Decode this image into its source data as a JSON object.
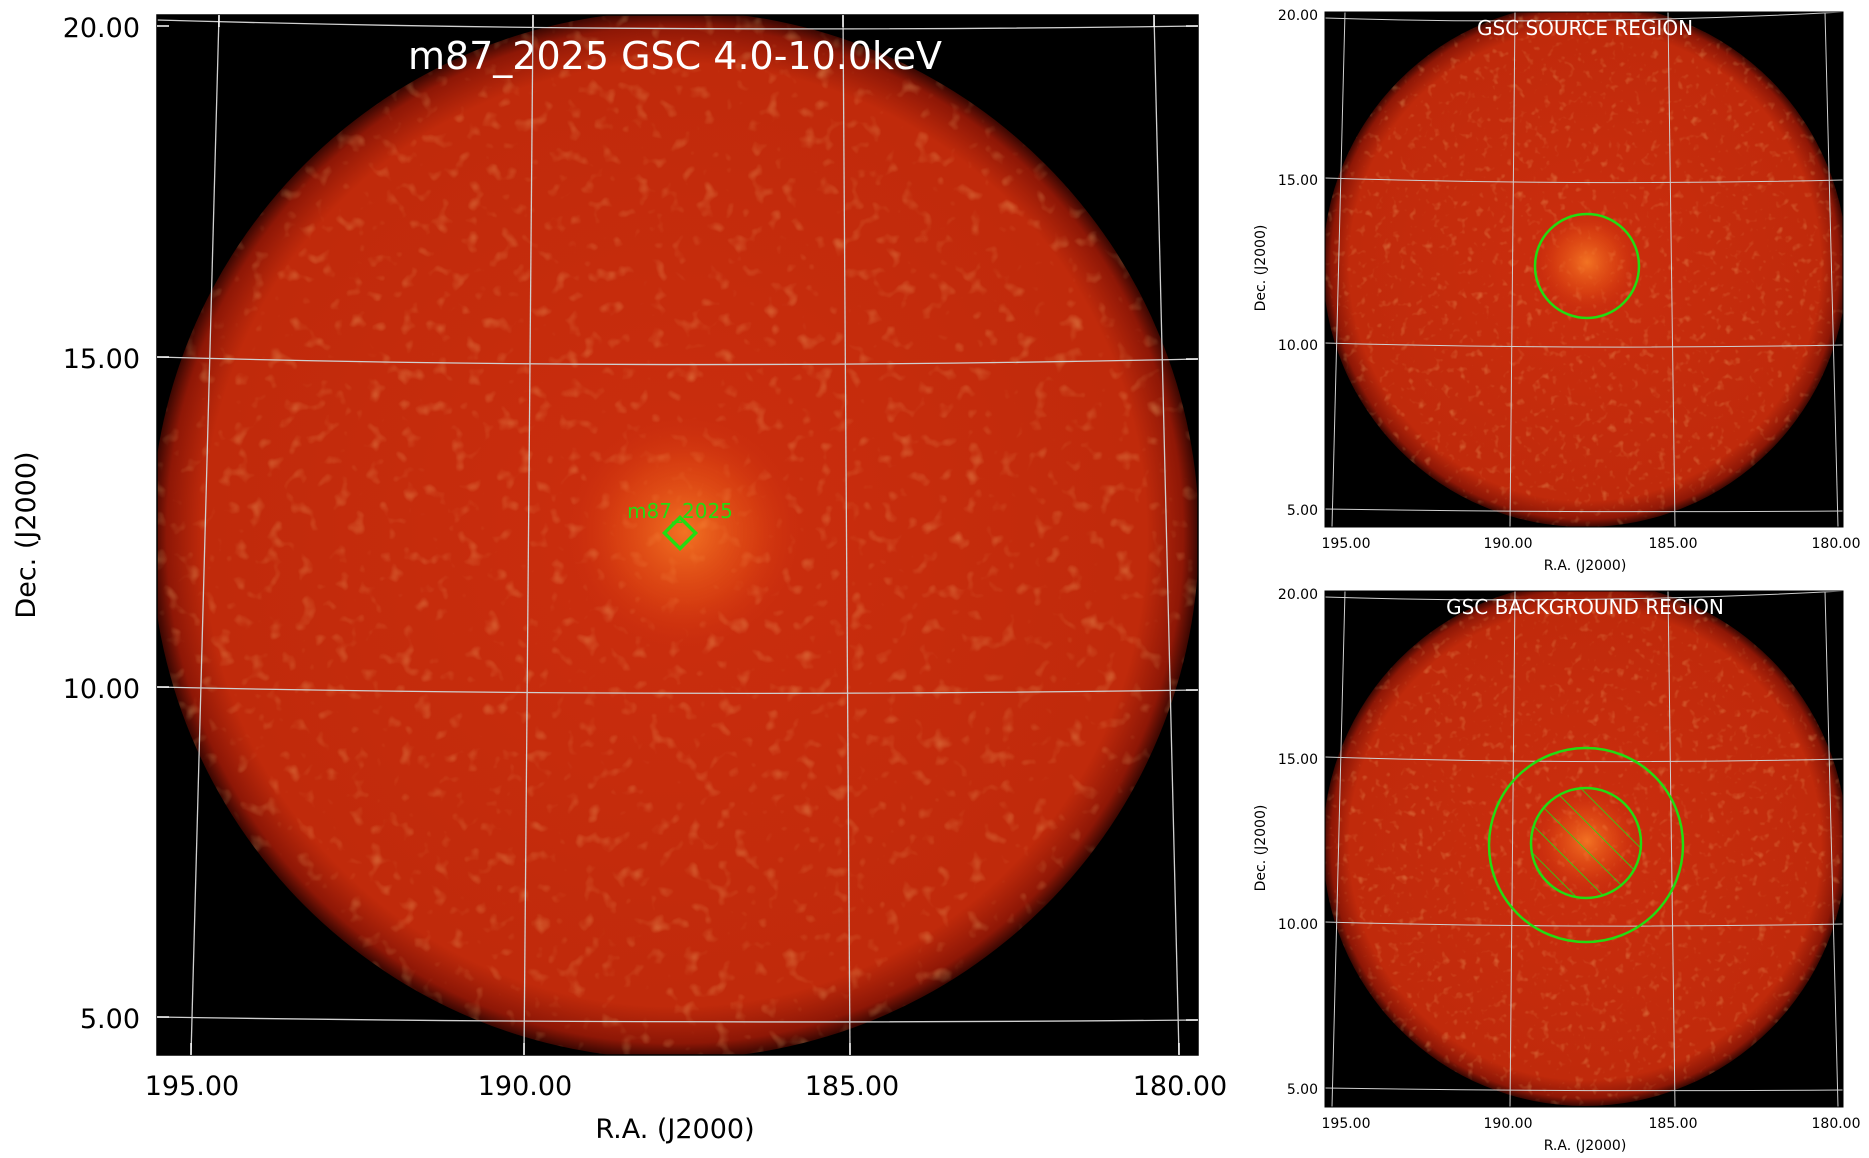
{
  "main_panel": {
    "title": "m87_2025 GSC 4.0-10.0keV",
    "xlabel": "R.A. (J2000)",
    "ylabel": "Dec. (J2000)",
    "x_ticks": [
      "195.00",
      "190.00",
      "185.00",
      "180.00"
    ],
    "y_ticks": [
      "20.00",
      "15.00",
      "10.00",
      "5.00"
    ],
    "source_marker_label": "m87_2025"
  },
  "source_panel": {
    "title": "GSC SOURCE REGION",
    "xlabel": "R.A. (J2000)",
    "ylabel": "Dec. (J2000)",
    "x_ticks": [
      "195.00",
      "190.00",
      "185.00",
      "180.00"
    ],
    "y_ticks": [
      "20.00",
      "15.00",
      "10.00",
      "5.00"
    ]
  },
  "background_panel": {
    "title": "GSC BACKGROUND REGION",
    "xlabel": "R.A. (J2000)",
    "ylabel": "Dec. (J2000)",
    "x_ticks": [
      "195.00",
      "190.00",
      "185.00",
      "180.00"
    ],
    "y_ticks": [
      "20.00",
      "15.00",
      "10.00",
      "5.00"
    ]
  },
  "colors": {
    "background": "#000000",
    "image_fill": "#c42a0c",
    "image_edge": "#8a1606",
    "hot": "#ff9a30",
    "region": "#22dd11",
    "grid": "#cfcfcf",
    "text_white": "#ffffff"
  }
}
